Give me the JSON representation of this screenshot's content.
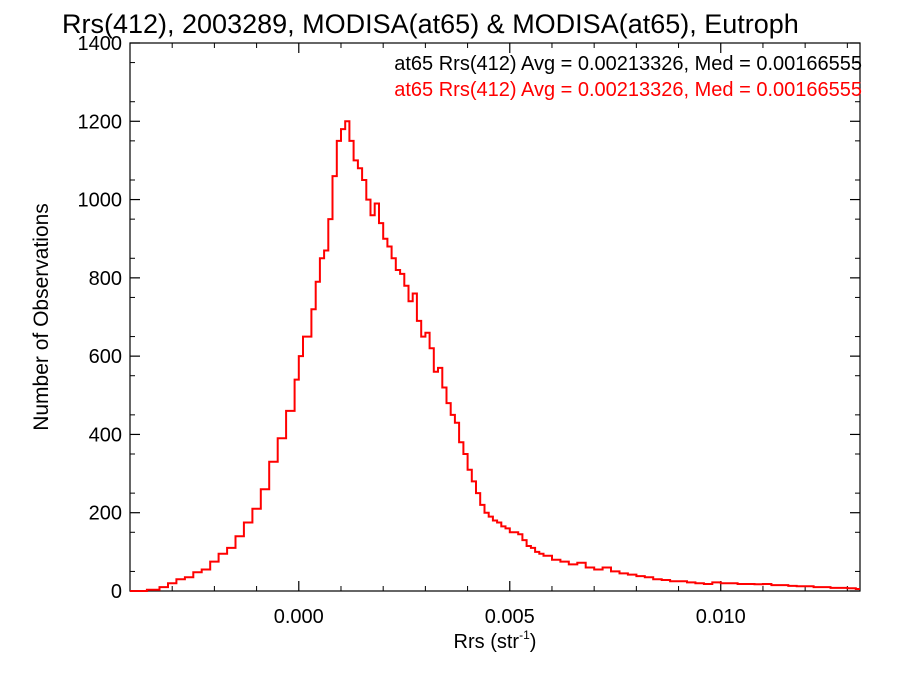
{
  "chart_data": {
    "type": "line",
    "title": "Rrs(412), 2003289, MODISA(at65) & MODISA(at65), Eutroph",
    "xlabel_base": "Rrs (str",
    "xlabel_sup": "-1",
    "xlabel_close": ")",
    "ylabel": "Number of Observations",
    "xlim": [
      -0.004,
      0.0133
    ],
    "ylim": [
      0,
      1400
    ],
    "xticks": [
      {
        "value": 0.0,
        "label": "0.000"
      },
      {
        "value": 0.005,
        "label": "0.005"
      },
      {
        "value": 0.01,
        "label": "0.010"
      }
    ],
    "yticks": [
      {
        "value": 0,
        "label": "0"
      },
      {
        "value": 200,
        "label": "200"
      },
      {
        "value": 400,
        "label": "400"
      },
      {
        "value": 600,
        "label": "600"
      },
      {
        "value": 800,
        "label": "800"
      },
      {
        "value": 1000,
        "label": "1000"
      },
      {
        "value": 1200,
        "label": "1200"
      },
      {
        "value": 1400,
        "label": "1400"
      }
    ],
    "annotations": [
      {
        "text": "at65 Rrs(412) Avg = 0.00213326, Med = 0.00166555",
        "color": "#000000"
      },
      {
        "text": "at65 Rrs(412) Avg = 0.00213326, Med = 0.00166555",
        "color": "#ff0000"
      }
    ],
    "series": [
      {
        "color": "#ff0000",
        "step": true,
        "points": [
          [
            -0.004,
            0
          ],
          [
            -0.0036,
            3
          ],
          [
            -0.0033,
            10
          ],
          [
            -0.0031,
            20
          ],
          [
            -0.0029,
            30
          ],
          [
            -0.0027,
            35
          ],
          [
            -0.0025,
            48
          ],
          [
            -0.0023,
            55
          ],
          [
            -0.0021,
            75
          ],
          [
            -0.0019,
            95
          ],
          [
            -0.0017,
            110
          ],
          [
            -0.0015,
            140
          ],
          [
            -0.0013,
            175
          ],
          [
            -0.0011,
            210
          ],
          [
            -0.0009,
            260
          ],
          [
            -0.0007,
            330
          ],
          [
            -0.0005,
            390
          ],
          [
            -0.0003,
            460
          ],
          [
            -0.0001,
            540
          ],
          [
            0.0,
            600
          ],
          [
            0.0001,
            650
          ],
          [
            0.0003,
            720
          ],
          [
            0.0004,
            790
          ],
          [
            0.0005,
            850
          ],
          [
            0.0006,
            870
          ],
          [
            0.0007,
            950
          ],
          [
            0.0008,
            1060
          ],
          [
            0.0009,
            1150
          ],
          [
            0.001,
            1180
          ],
          [
            0.0011,
            1200
          ],
          [
            0.0012,
            1150
          ],
          [
            0.0013,
            1100
          ],
          [
            0.0014,
            1080
          ],
          [
            0.0015,
            1050
          ],
          [
            0.0016,
            1000
          ],
          [
            0.0017,
            960
          ],
          [
            0.0018,
            990
          ],
          [
            0.0019,
            940
          ],
          [
            0.002,
            900
          ],
          [
            0.0021,
            880
          ],
          [
            0.0022,
            850
          ],
          [
            0.0023,
            820
          ],
          [
            0.0024,
            810
          ],
          [
            0.0025,
            780
          ],
          [
            0.0026,
            740
          ],
          [
            0.0027,
            760
          ],
          [
            0.0028,
            690
          ],
          [
            0.0029,
            650
          ],
          [
            0.003,
            660
          ],
          [
            0.0031,
            620
          ],
          [
            0.0032,
            560
          ],
          [
            0.0033,
            570
          ],
          [
            0.0034,
            520
          ],
          [
            0.0035,
            480
          ],
          [
            0.0036,
            450
          ],
          [
            0.0037,
            430
          ],
          [
            0.0038,
            380
          ],
          [
            0.0039,
            350
          ],
          [
            0.004,
            310
          ],
          [
            0.0041,
            280
          ],
          [
            0.0042,
            250
          ],
          [
            0.0043,
            220
          ],
          [
            0.0044,
            200
          ],
          [
            0.0045,
            190
          ],
          [
            0.0046,
            180
          ],
          [
            0.0047,
            175
          ],
          [
            0.0048,
            165
          ],
          [
            0.0049,
            160
          ],
          [
            0.005,
            150
          ],
          [
            0.0051,
            150
          ],
          [
            0.0052,
            145
          ],
          [
            0.0053,
            130
          ],
          [
            0.0054,
            115
          ],
          [
            0.0055,
            110
          ],
          [
            0.0056,
            100
          ],
          [
            0.0057,
            95
          ],
          [
            0.0058,
            90
          ],
          [
            0.006,
            80
          ],
          [
            0.0062,
            75
          ],
          [
            0.0064,
            68
          ],
          [
            0.0066,
            72
          ],
          [
            0.0068,
            60
          ],
          [
            0.007,
            55
          ],
          [
            0.0072,
            60
          ],
          [
            0.0074,
            50
          ],
          [
            0.0076,
            45
          ],
          [
            0.0078,
            42
          ],
          [
            0.008,
            38
          ],
          [
            0.0082,
            35
          ],
          [
            0.0084,
            30
          ],
          [
            0.0086,
            28
          ],
          [
            0.0088,
            25
          ],
          [
            0.009,
            25
          ],
          [
            0.0092,
            22
          ],
          [
            0.0094,
            20
          ],
          [
            0.0096,
            18
          ],
          [
            0.0098,
            22
          ],
          [
            0.01,
            20
          ],
          [
            0.0102,
            20
          ],
          [
            0.0104,
            18
          ],
          [
            0.0106,
            18
          ],
          [
            0.0108,
            17
          ],
          [
            0.011,
            18
          ],
          [
            0.0112,
            15
          ],
          [
            0.0114,
            15
          ],
          [
            0.0116,
            13
          ],
          [
            0.0118,
            12
          ],
          [
            0.012,
            12
          ],
          [
            0.0122,
            10
          ],
          [
            0.0124,
            10
          ],
          [
            0.0126,
            8
          ],
          [
            0.0128,
            8
          ],
          [
            0.013,
            7
          ],
          [
            0.0132,
            5
          ],
          [
            0.0133,
            5
          ]
        ]
      }
    ]
  }
}
